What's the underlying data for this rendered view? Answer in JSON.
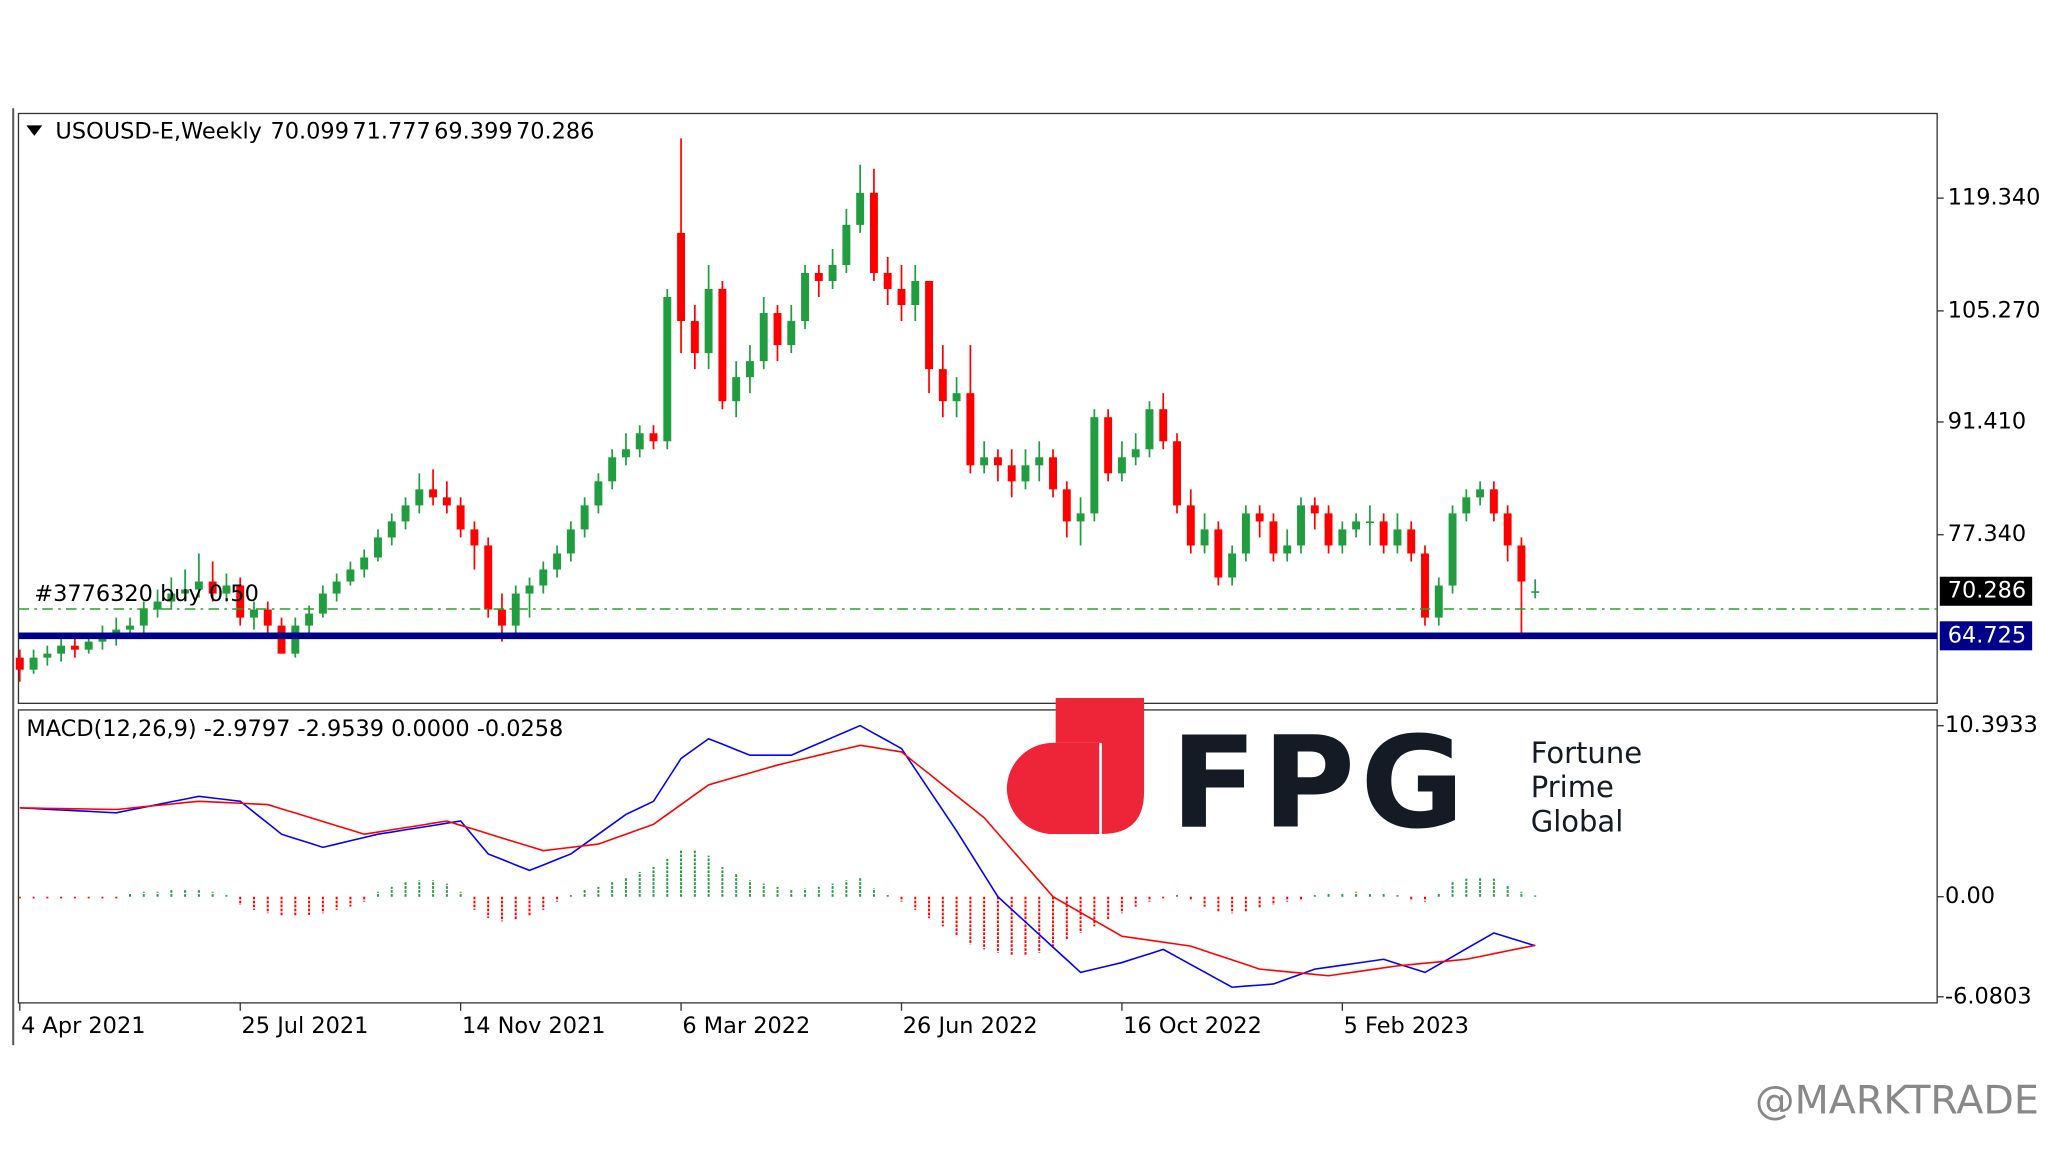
{
  "chart_data": [
    {
      "type": "candlestick",
      "title": "USOUSD-E,Weekly",
      "up_color": "#1f9d3f",
      "down_color": "#ff0000",
      "ylim": [
        56.3,
        129.9
      ],
      "yticks": [
        {
          "value": 119.34,
          "label": "119.340"
        },
        {
          "value": 105.27,
          "label": "105.270"
        },
        {
          "value": 91.41,
          "label": "91.410"
        },
        {
          "value": 77.34,
          "label": "77.340"
        }
      ],
      "levels": [
        {
          "label": "#3776320 buy 0.50",
          "value": 68.07,
          "color": "#2e9e2e"
        },
        {
          "value": 64.725,
          "color": "#00008b"
        }
      ],
      "categories": [
        "4 Apr 2021",
        null,
        null,
        null,
        null,
        null,
        null,
        null,
        null,
        null,
        null,
        null,
        null,
        null,
        null,
        null,
        "25 Jul 2021",
        null,
        null,
        null,
        null,
        null,
        null,
        null,
        null,
        null,
        null,
        null,
        null,
        null,
        null,
        null,
        "14 Nov 2021",
        null,
        null,
        null,
        null,
        null,
        null,
        null,
        null,
        null,
        null,
        null,
        null,
        null,
        null,
        null,
        "6 Mar 2022",
        null,
        null,
        null,
        null,
        null,
        null,
        null,
        null,
        null,
        null,
        null,
        null,
        null,
        null,
        null,
        "26 Jun 2022",
        null,
        null,
        null,
        null,
        null,
        null,
        null,
        null,
        null,
        null,
        null,
        null,
        null,
        null,
        null,
        "16 Oct 2022",
        null,
        null,
        null,
        null,
        null,
        null,
        null,
        null,
        null,
        null,
        null,
        null,
        null,
        null,
        null,
        "5 Feb 2023",
        null,
        null,
        null,
        null,
        null,
        null,
        null,
        null,
        null,
        null,
        null,
        null,
        null,
        null
      ],
      "candles": [
        [
          62,
          63,
          59,
          60.5
        ],
        [
          60.5,
          63,
          60,
          62
        ],
        [
          62,
          63.5,
          61,
          62.5
        ],
        [
          62.5,
          64.5,
          61.5,
          63.5
        ],
        [
          63.5,
          65,
          62,
          63
        ],
        [
          63,
          65,
          62.5,
          64
        ],
        [
          64,
          66,
          63,
          64.5
        ],
        [
          64.5,
          67,
          63.5,
          65.5
        ],
        [
          65.5,
          67,
          64.5,
          66
        ],
        [
          66,
          69,
          65,
          68
        ],
        [
          68,
          70.5,
          67,
          69
        ],
        [
          69,
          72,
          68,
          70
        ],
        [
          70,
          73,
          69,
          70.5
        ],
        [
          70.5,
          75,
          69.5,
          71.5
        ],
        [
          71.5,
          74,
          69,
          70
        ],
        [
          70,
          72.5,
          69,
          71
        ],
        [
          71,
          72,
          66,
          67
        ],
        [
          67,
          69,
          65.5,
          68
        ],
        [
          68,
          69,
          65,
          66
        ],
        [
          66,
          67,
          62.5,
          62.5
        ],
        [
          62.5,
          67,
          62,
          66
        ],
        [
          66,
          68.5,
          65,
          67.5
        ],
        [
          67.5,
          71,
          67,
          70
        ],
        [
          70,
          72.5,
          69,
          71.5
        ],
        [
          71.5,
          74,
          71,
          73
        ],
        [
          73,
          75.5,
          72,
          74.5
        ],
        [
          74.5,
          78,
          74,
          77
        ],
        [
          77,
          80,
          76,
          79
        ],
        [
          79,
          82,
          78,
          81
        ],
        [
          81,
          85,
          80,
          83
        ],
        [
          83,
          85.5,
          81,
          82
        ],
        [
          82,
          84,
          80,
          81
        ],
        [
          81,
          82,
          77,
          78
        ],
        [
          78,
          79,
          73,
          76
        ],
        [
          76,
          77,
          67,
          68
        ],
        [
          68,
          70,
          64,
          66
        ],
        [
          66,
          71,
          65,
          70
        ],
        [
          70,
          72,
          67,
          71
        ],
        [
          71,
          74,
          70,
          73
        ],
        [
          73,
          76,
          72,
          75
        ],
        [
          75,
          79,
          74,
          78
        ],
        [
          78,
          82,
          77,
          81
        ],
        [
          81,
          85,
          80,
          84
        ],
        [
          84,
          88,
          83,
          87
        ],
        [
          87,
          90,
          86,
          88
        ],
        [
          88,
          91,
          87,
          90
        ],
        [
          90,
          91,
          88,
          89
        ],
        [
          89,
          108,
          88,
          107
        ],
        [
          115,
          126.8,
          100,
          104
        ],
        [
          104,
          106,
          98,
          100
        ],
        [
          100,
          111,
          98,
          108
        ],
        [
          108,
          109,
          93,
          94
        ],
        [
          94,
          99,
          92,
          97
        ],
        [
          97,
          101,
          95,
          99
        ],
        [
          99,
          107,
          98,
          105
        ],
        [
          105,
          106,
          99,
          101
        ],
        [
          101,
          106,
          100,
          104
        ],
        [
          104,
          111,
          103,
          110
        ],
        [
          110,
          111,
          107,
          109
        ],
        [
          109,
          113,
          108,
          111
        ],
        [
          111,
          118,
          110,
          116
        ],
        [
          116,
          123.5,
          115,
          120
        ],
        [
          120,
          123,
          109,
          110
        ],
        [
          110,
          112,
          106,
          108
        ],
        [
          108,
          111,
          104,
          106
        ],
        [
          106,
          111,
          104,
          109
        ],
        [
          109,
          109,
          95,
          98
        ],
        [
          98,
          101,
          92,
          94
        ],
        [
          94,
          97,
          92,
          95
        ],
        [
          95,
          101,
          85,
          86
        ],
        [
          86,
          89,
          85,
          87
        ],
        [
          87,
          88,
          84,
          86
        ],
        [
          86,
          88,
          82,
          84
        ],
        [
          84,
          88,
          83,
          86
        ],
        [
          86,
          89,
          84,
          87
        ],
        [
          87,
          88,
          82,
          83
        ],
        [
          83,
          84,
          77,
          79
        ],
        [
          79,
          82,
          76,
          80
        ],
        [
          80,
          93,
          79,
          92
        ],
        [
          92,
          93,
          84,
          85
        ],
        [
          85,
          89,
          84,
          87
        ],
        [
          87,
          90,
          86,
          88
        ],
        [
          88,
          94,
          87,
          93
        ],
        [
          93,
          95,
          88,
          89
        ],
        [
          89,
          90,
          80,
          81
        ],
        [
          81,
          83,
          75,
          76
        ],
        [
          76,
          80,
          75,
          78
        ],
        [
          78,
          79,
          71,
          72
        ],
        [
          72,
          76,
          71,
          75
        ],
        [
          75,
          81,
          74,
          80
        ],
        [
          80,
          81,
          77,
          79
        ],
        [
          79,
          80,
          74,
          75
        ],
        [
          75,
          78,
          74,
          76
        ],
        [
          76,
          82,
          75,
          81
        ],
        [
          81,
          82,
          78,
          80
        ],
        [
          80,
          81,
          75,
          76
        ],
        [
          76,
          79,
          75,
          78
        ],
        [
          78,
          80,
          77,
          79
        ],
        [
          79,
          81,
          76,
          79
        ],
        [
          79,
          80,
          75,
          76
        ],
        [
          76,
          80,
          75,
          78
        ],
        [
          78,
          79,
          74,
          75
        ],
        [
          75,
          76,
          66,
          67
        ],
        [
          67,
          72,
          66,
          71
        ],
        [
          71,
          81,
          70,
          80
        ],
        [
          80,
          83,
          79,
          82
        ],
        [
          82,
          84,
          81,
          83
        ],
        [
          83,
          84,
          79,
          80
        ],
        [
          80,
          81,
          74,
          76
        ],
        [
          76,
          77,
          65,
          71.5
        ],
        [
          70.099,
          71.777,
          69.399,
          70.286
        ]
      ]
    },
    {
      "type": "line",
      "title": "MACD(12,26,9) -2.9797 -2.9539 0.0000 -0.0258",
      "ylim": [
        -6.45,
        11.35
      ],
      "yticks": [
        10.3933,
        {
          "value": 0,
          "label": "0.00"
        },
        -6.0803
      ],
      "series": [
        {
          "color": "#0000ff",
          "values": [
            5.4,
            5.36,
            5.31,
            5.27,
            5.23,
            5.19,
            5.14,
            5.1,
            5.27,
            5.43,
            5.6,
            5.77,
            5.93,
            6.1,
            6.0,
            5.9,
            5.8,
            5.13,
            4.47,
            3.8,
            3.53,
            3.27,
            3.0,
            3.2,
            3.4,
            3.6,
            3.8,
            3.93,
            4.07,
            4.2,
            4.33,
            4.47,
            4.6,
            3.6,
            2.6,
            2.27,
            1.93,
            1.6,
            1.93,
            2.27,
            2.6,
            3.2,
            3.8,
            4.4,
            5.0,
            5.4,
            5.8,
            7.1,
            8.4,
            9.0,
            9.6,
            9.27,
            8.93,
            8.6,
            8.6,
            8.6,
            8.6,
            8.96,
            9.32,
            9.68,
            10.04,
            10.4,
            9.93,
            9.47,
            9.0,
            7.75,
            6.5,
            5.25,
            4.0,
            2.67,
            1.33,
            0,
            -0.77,
            -1.53,
            -2.3,
            -3.07,
            -3.83,
            -4.6,
            -4.4,
            -4.2,
            -4.0,
            -3.73,
            -3.47,
            -3.2,
            -3.66,
            -4.12,
            -4.58,
            -5.04,
            -5.5,
            -5.43,
            -5.37,
            -5.3,
            -5.0,
            -4.7,
            -4.4,
            -4.28,
            -4.16,
            -4.04,
            -3.92,
            -3.8,
            -4.07,
            -4.33,
            -4.6,
            -4.12,
            -3.64,
            -3.16,
            -2.68,
            -2.2,
            -2.46,
            -2.72,
            -2.9797
          ]
        },
        {
          "color": "#ff0000",
          "values": [
            5.4,
            5.39,
            5.37,
            5.36,
            5.34,
            5.33,
            5.31,
            5.3,
            5.38,
            5.47,
            5.55,
            5.63,
            5.72,
            5.8,
            5.76,
            5.72,
            5.68,
            5.64,
            5.6,
            5.34,
            5.09,
            4.83,
            4.57,
            4.31,
            4.06,
            3.8,
            3.93,
            4.07,
            4.2,
            4.33,
            4.47,
            4.6,
            4.34,
            4.09,
            3.83,
            3.57,
            3.31,
            3.06,
            2.8,
            2.9,
            3.0,
            3.1,
            3.2,
            3.5,
            3.8,
            4.1,
            4.4,
            5.0,
            5.6,
            6.2,
            6.8,
            7.04,
            7.28,
            7.52,
            7.76,
            8.0,
            8.2,
            8.4,
            8.6,
            8.8,
            9.0,
            9.2,
            9.07,
            8.93,
            8.8,
            8.13,
            7.47,
            6.8,
            6.13,
            5.47,
            4.8,
            3.84,
            2.88,
            1.92,
            0.96,
            0,
            -0.48,
            -0.96,
            -1.44,
            -1.92,
            -2.4,
            -2.52,
            -2.64,
            -2.76,
            -2.88,
            -3.0,
            -3.28,
            -3.56,
            -3.84,
            -4.12,
            -4.4,
            -4.48,
            -4.56,
            -4.64,
            -4.72,
            -4.8,
            -4.68,
            -4.56,
            -4.44,
            -4.32,
            -4.2,
            -4.12,
            -4.04,
            -3.96,
            -3.88,
            -3.8,
            -3.63,
            -3.46,
            -3.29,
            -3.12,
            -2.9539
          ]
        }
      ],
      "histogram": {
        "up_color": "#1f9d3f",
        "down_color": "#ff0000",
        "values": [
          -0.1,
          -0.1,
          -0.1,
          -0.1,
          -0.1,
          -0.1,
          -0.1,
          -0.1,
          0.2,
          0.3,
          0.3,
          0.4,
          0.4,
          0.4,
          0.3,
          0.1,
          -0.5,
          -0.8,
          -1.0,
          -1.2,
          -1.2,
          -1.1,
          -1.0,
          -0.8,
          -0.6,
          -0.3,
          0.3,
          0.6,
          0.9,
          1.0,
          1.0,
          0.8,
          0.3,
          -0.8,
          -1.3,
          -1.5,
          -1.4,
          -1.2,
          -0.8,
          -0.3,
          0.1,
          0.4,
          0.6,
          0.9,
          1.2,
          1.5,
          1.8,
          2.3,
          2.8,
          2.8,
          2.5,
          1.8,
          1.4,
          1.0,
          0.8,
          0.6,
          0.4,
          0.5,
          0.6,
          0.8,
          1.0,
          1.2,
          0.5,
          0.1,
          -0.3,
          -0.8,
          -1.3,
          -1.8,
          -2.4,
          -2.9,
          -3.2,
          -3.4,
          -3.6,
          -3.6,
          -3.4,
          -3.0,
          -2.6,
          -2.2,
          -1.8,
          -1.4,
          -1.0,
          -0.6,
          -0.3,
          -0.1,
          0.1,
          -0.2,
          -0.6,
          -0.9,
          -1.0,
          -0.9,
          -0.7,
          -0.5,
          -0.3,
          -0.2,
          0.1,
          0.2,
          0.2,
          0.3,
          0.2,
          0.2,
          0.1,
          -0.2,
          -0.3,
          0.2,
          0.9,
          1.1,
          1.2,
          1.1,
          0.7,
          0.3,
          0.0
        ]
      }
    }
  ],
  "logo": {
    "mark": "FPG",
    "lines": [
      "Fortune",
      "Prime",
      "Global"
    ]
  },
  "watermark": "@MARKTRADE"
}
